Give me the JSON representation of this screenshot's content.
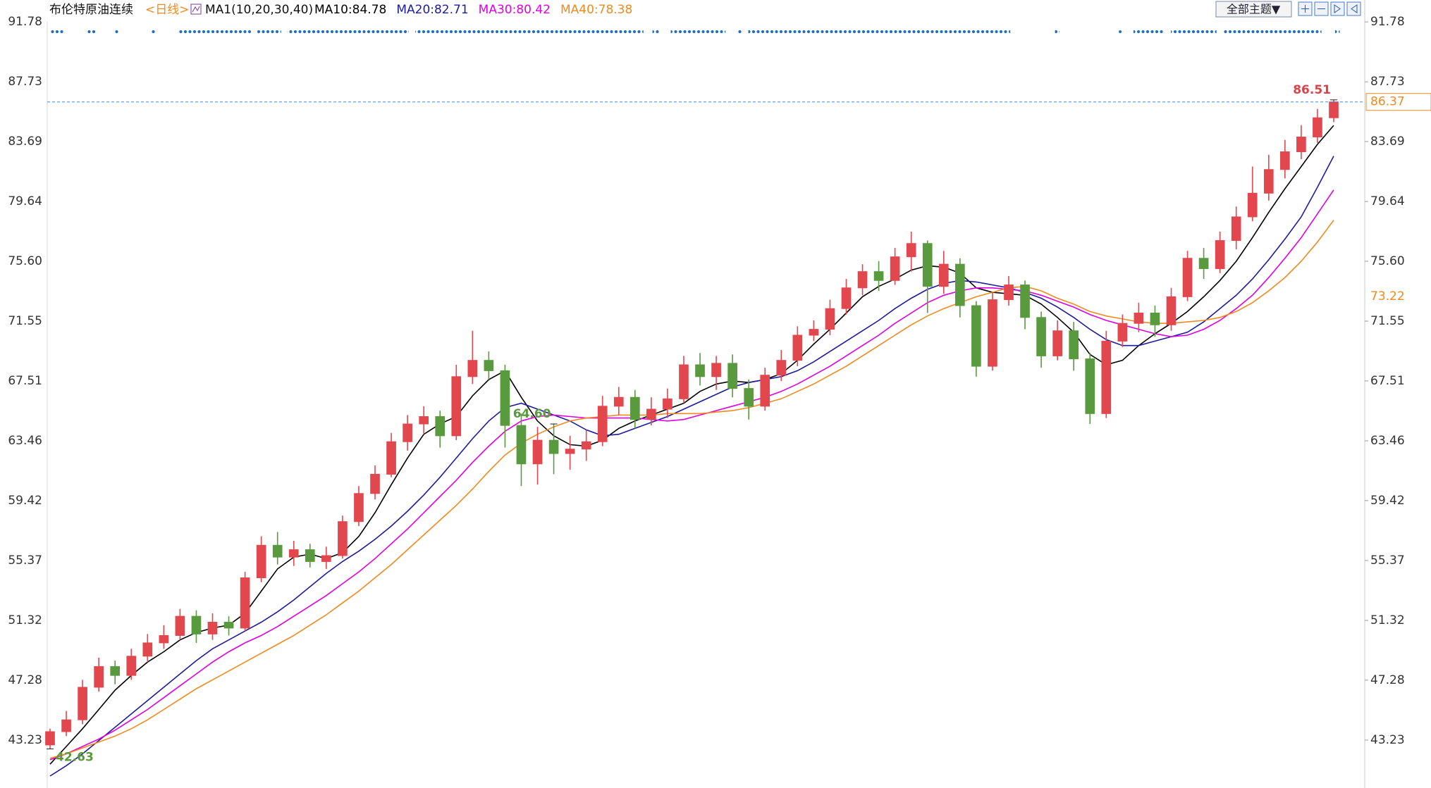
{
  "header": {
    "instrument": "布伦特原油连续",
    "period": "<日线>",
    "indicator": "MA1(10,20,30,40)",
    "theme_button": "全部主题▼"
  },
  "chart_data": {
    "type": "candlestick",
    "open": [
      42.9,
      43.8,
      44.6,
      46.8,
      48.2,
      47.6,
      48.9,
      49.8,
      50.3,
      51.6,
      50.4,
      51.2,
      50.8,
      54.2,
      56.4,
      55.6,
      56.1,
      55.3,
      55.7,
      58.0,
      59.9,
      61.2,
      63.4,
      64.6,
      65.1,
      63.8,
      67.8,
      68.9,
      68.2,
      64.5,
      61.9,
      63.5,
      62.6,
      62.9,
      63.4,
      65.8,
      66.4,
      64.9,
      65.6,
      66.3,
      68.6,
      67.8,
      68.7,
      67.0,
      65.8,
      67.9,
      68.9,
      70.6,
      71.0,
      72.4,
      73.8,
      74.9,
      74.3,
      75.9,
      76.8,
      73.9,
      75.4,
      72.6,
      68.5,
      73.0,
      74.0,
      71.8,
      69.2,
      70.9,
      69.0,
      65.3,
      70.2,
      71.4,
      72.1,
      71.3,
      73.2,
      75.8,
      75.1,
      77.0,
      78.6,
      80.2,
      81.8,
      83.0,
      84.0,
      85.3
    ],
    "high": [
      44.0,
      45.2,
      47.3,
      48.8,
      48.6,
      49.4,
      50.4,
      51.0,
      52.1,
      52.0,
      51.8,
      51.6,
      54.6,
      57.0,
      57.3,
      56.7,
      56.5,
      56.3,
      58.4,
      60.4,
      61.8,
      64.0,
      65.2,
      65.8,
      65.5,
      68.6,
      70.9,
      69.5,
      68.6,
      65.3,
      64.4,
      64.6,
      63.8,
      64.2,
      66.5,
      67.1,
      66.9,
      66.4,
      67.0,
      69.2,
      69.4,
      69.2,
      69.3,
      67.6,
      68.4,
      69.6,
      71.2,
      71.6,
      73.0,
      74.4,
      75.4,
      75.6,
      76.5,
      77.6,
      77.0,
      76.3,
      75.8,
      72.9,
      73.5,
      74.6,
      74.3,
      72.2,
      71.6,
      71.5,
      69.4,
      70.9,
      72.0,
      72.8,
      72.6,
      73.8,
      76.3,
      76.5,
      77.6,
      79.3,
      82.0,
      82.8,
      83.8,
      84.8,
      85.9,
      86.51
    ],
    "low": [
      42.63,
      43.5,
      44.3,
      46.5,
      47.0,
      47.3,
      48.5,
      49.4,
      50.0,
      49.8,
      50.0,
      50.3,
      50.6,
      53.9,
      55.1,
      55.0,
      54.9,
      54.8,
      55.5,
      57.7,
      59.5,
      61.0,
      62.8,
      63.9,
      63.0,
      63.5,
      67.3,
      67.6,
      63.0,
      60.4,
      60.5,
      61.2,
      61.5,
      62.1,
      63.1,
      65.2,
      64.3,
      64.5,
      65.0,
      66.0,
      67.2,
      66.9,
      66.4,
      64.9,
      65.5,
      67.5,
      68.5,
      70.2,
      70.6,
      72.0,
      73.3,
      73.6,
      74.0,
      74.9,
      72.1,
      73.4,
      71.8,
      67.8,
      68.2,
      72.6,
      71.0,
      68.4,
      68.9,
      68.2,
      64.6,
      65.0,
      69.8,
      70.8,
      70.5,
      70.9,
      72.9,
      74.4,
      74.8,
      76.4,
      78.3,
      79.7,
      81.2,
      82.5,
      83.6,
      85.0
    ],
    "close": [
      43.8,
      44.6,
      46.8,
      48.2,
      47.6,
      48.9,
      49.8,
      50.3,
      51.6,
      50.4,
      51.2,
      50.8,
      54.2,
      56.4,
      55.6,
      56.1,
      55.3,
      55.7,
      58.0,
      59.9,
      61.2,
      63.4,
      64.6,
      65.1,
      63.8,
      67.8,
      68.9,
      68.2,
      64.5,
      61.9,
      63.5,
      62.6,
      62.9,
      63.4,
      65.8,
      66.4,
      64.9,
      65.6,
      66.3,
      68.6,
      67.8,
      68.7,
      67.0,
      65.8,
      67.9,
      68.9,
      70.6,
      71.0,
      72.4,
      73.8,
      74.9,
      74.3,
      75.9,
      76.8,
      73.9,
      75.4,
      72.6,
      68.5,
      73.0,
      74.0,
      71.8,
      69.2,
      70.9,
      69.0,
      65.3,
      70.2,
      71.4,
      72.1,
      71.3,
      73.2,
      75.8,
      75.1,
      77.0,
      78.6,
      80.2,
      81.8,
      83.0,
      84.0,
      85.3,
      86.37
    ],
    "up_color": "#e2474e",
    "down_color": "#5a9a3e",
    "series": [
      {
        "label": "MA10:84.78",
        "color": "#000000",
        "values": [
          41.6,
          42.8,
          44.0,
          45.3,
          46.6,
          47.6,
          48.5,
          49.2,
          50.0,
          50.5,
          50.8,
          51.0,
          51.8,
          53.3,
          54.8,
          55.6,
          55.8,
          55.5,
          55.9,
          57.0,
          58.6,
          60.5,
          62.3,
          63.9,
          64.6,
          65.1,
          66.5,
          67.6,
          68.2,
          66.4,
          64.8,
          63.8,
          63.2,
          63.1,
          63.5,
          64.3,
          64.8,
          65.2,
          65.6,
          66.0,
          66.8,
          67.3,
          67.5,
          67.4,
          67.6,
          68.0,
          68.9,
          70.0,
          71.0,
          72.1,
          73.2,
          73.9,
          74.4,
          75.0,
          75.3,
          75.2,
          74.8,
          73.8,
          73.5,
          73.4,
          73.3,
          72.7,
          71.8,
          70.8,
          69.3,
          68.6,
          68.9,
          69.9,
          70.7,
          71.4,
          72.2,
          73.2,
          74.3,
          75.6,
          77.2,
          78.9,
          80.5,
          82.0,
          83.5,
          84.78
        ]
      },
      {
        "label": "MA20:82.71",
        "color": "#1c1c9c",
        "values": [
          40.8,
          41.5,
          42.3,
          43.2,
          44.1,
          45.0,
          45.9,
          46.8,
          47.7,
          48.6,
          49.4,
          50.0,
          50.6,
          51.2,
          51.9,
          52.7,
          53.6,
          54.5,
          55.3,
          56.0,
          56.8,
          57.7,
          58.7,
          59.8,
          61.0,
          62.3,
          63.6,
          64.8,
          65.7,
          66.0,
          65.6,
          65.2,
          64.8,
          64.2,
          63.8,
          63.9,
          64.3,
          64.7,
          65.1,
          65.6,
          66.1,
          66.6,
          67.1,
          67.4,
          67.6,
          67.8,
          68.2,
          68.8,
          69.5,
          70.2,
          70.9,
          71.6,
          72.4,
          73.1,
          73.7,
          74.1,
          74.3,
          74.2,
          74.0,
          73.8,
          73.5,
          73.1,
          72.5,
          71.8,
          71.0,
          70.3,
          69.9,
          69.9,
          70.2,
          70.5,
          70.8,
          71.5,
          72.4,
          73.3,
          74.4,
          75.7,
          77.1,
          78.6,
          80.6,
          82.71
        ]
      },
      {
        "label": "MA30:80.42",
        "color": "#e000e0",
        "values": [
          41.9,
          42.3,
          42.8,
          43.3,
          43.9,
          44.6,
          45.3,
          46.1,
          46.9,
          47.7,
          48.5,
          49.2,
          49.8,
          50.3,
          50.9,
          51.6,
          52.3,
          53.0,
          53.8,
          54.6,
          55.5,
          56.5,
          57.5,
          58.6,
          59.7,
          60.8,
          62.0,
          63.1,
          64.1,
          64.8,
          65.1,
          65.2,
          65.1,
          65.0,
          65.0,
          65.0,
          65.0,
          64.9,
          64.8,
          64.9,
          65.2,
          65.5,
          65.8,
          66.1,
          66.4,
          66.8,
          67.3,
          67.9,
          68.5,
          69.2,
          69.9,
          70.6,
          71.4,
          72.1,
          72.8,
          73.3,
          73.6,
          73.8,
          73.8,
          73.7,
          73.6,
          73.3,
          72.9,
          72.5,
          72.0,
          71.6,
          71.3,
          71.0,
          70.7,
          70.5,
          70.6,
          71.0,
          71.6,
          72.4,
          73.3,
          74.5,
          75.8,
          77.2,
          78.8,
          80.42
        ]
      },
      {
        "label": "MA40:78.38",
        "color": "#f08a1e",
        "values": [
          42.0,
          42.3,
          42.7,
          43.1,
          43.5,
          44.0,
          44.6,
          45.3,
          46.0,
          46.7,
          47.3,
          47.9,
          48.5,
          49.1,
          49.7,
          50.3,
          51.0,
          51.7,
          52.5,
          53.3,
          54.2,
          55.1,
          56.1,
          57.1,
          58.1,
          59.1,
          60.2,
          61.4,
          62.5,
          63.3,
          63.9,
          64.4,
          64.8,
          65.0,
          65.1,
          65.2,
          65.2,
          65.2,
          65.3,
          65.3,
          65.3,
          65.4,
          65.5,
          65.7,
          66.0,
          66.3,
          66.8,
          67.3,
          67.9,
          68.5,
          69.2,
          69.9,
          70.6,
          71.3,
          71.9,
          72.4,
          72.8,
          73.2,
          73.5,
          73.8,
          73.9,
          73.6,
          73.1,
          72.7,
          72.2,
          71.9,
          71.7,
          71.5,
          71.4,
          71.4,
          71.5,
          71.6,
          71.8,
          72.2,
          72.8,
          73.6,
          74.5,
          75.6,
          76.9,
          78.38
        ]
      }
    ],
    "ylim": [
      39.99,
      93.26
    ],
    "yticks": [
      43.23,
      47.28,
      51.32,
      55.37,
      59.42,
      63.46,
      67.51,
      71.55,
      {
        "value": 75.6,
        "label": "75.60"
      },
      79.64,
      83.69,
      87.73,
      91.78
    ],
    "annotations": [
      {
        "label": "86.51",
        "value": 86.51,
        "color": "#d9444a"
      },
      {
        "label": "64.60",
        "value": 64.6,
        "color": "#5a9a3e"
      },
      {
        "label": "42.63",
        "value": 42.63,
        "color": "#5a9a3e"
      }
    ],
    "last_price": {
      "label": "86.37",
      "value": 86.37
    },
    "marker_label": {
      "label": "73.22",
      "value": 73.22
    }
  }
}
